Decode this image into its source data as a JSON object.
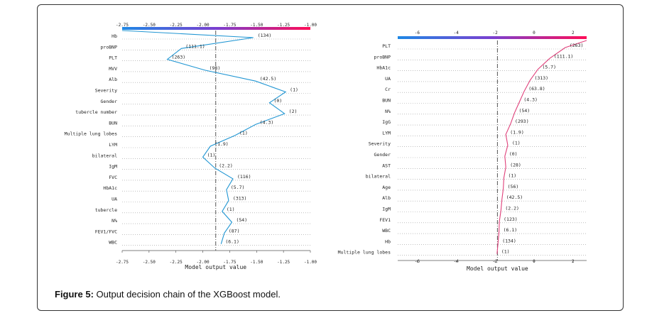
{
  "caption": {
    "label": "Figure 5:",
    "text": " Output decision chain of the XGBoost model."
  },
  "chart_data": [
    {
      "type": "line",
      "xlabel": "Model output value",
      "xlim": [
        -2.75,
        -1.0
      ],
      "xticks": [
        "-2.75",
        "-2.50",
        "-2.25",
        "-2.00",
        "-1.75",
        "-1.50",
        "-1.25",
        "-1.00"
      ],
      "tick_values": [
        -2.75,
        -2.5,
        -2.25,
        -2.0,
        -1.75,
        -1.5,
        -1.25,
        -1.0
      ],
      "base_value": -1.88,
      "features": [
        "Hb",
        "proBNP",
        "PLT",
        "MVV",
        "Alb",
        "Severity",
        "Gender",
        "tubercle number",
        "BUN",
        "Multiple lung lobes",
        "LYM",
        "bilateral",
        "IgM",
        "FVC",
        "HbA1c",
        "UA",
        "tubercle",
        "N%",
        "FEV1/FVC",
        "WBC"
      ],
      "feature_values": [
        "(134)",
        "(111.1)",
        "(263)",
        "(98)",
        "(42.5)",
        "(1)",
        "(0)",
        "(2)",
        "(4.3)",
        "(1)",
        "(1.9)",
        "(1)",
        "(2.2)",
        "(116)",
        "(5.7)",
        "(313)",
        "(1)",
        "(54)",
        "(87)",
        "(6.1)"
      ],
      "path": [
        -2.75,
        -1.53,
        -2.2,
        -2.33,
        -1.98,
        -1.51,
        -1.23,
        -1.38,
        -1.24,
        -1.51,
        -1.7,
        -1.93,
        -2.0,
        -1.89,
        -1.72,
        -1.78,
        -1.76,
        -1.82,
        -1.73,
        -1.8,
        -1.83
      ],
      "grid": "dotted rows",
      "colorbar": {
        "low": "#1e88e5",
        "high": "#ff0d57"
      }
    },
    {
      "type": "line",
      "xlabel": "Model output value",
      "xlim": [
        -7,
        2.7
      ],
      "xticks": [
        "-6",
        "-4",
        "-2",
        "0",
        "2"
      ],
      "tick_values": [
        -6,
        -4,
        -2,
        0,
        2
      ],
      "base_value": -1.88,
      "features": [
        "PLT",
        "proBNP",
        "HbA1c",
        "UA",
        "Cr",
        "BUN",
        "N%",
        "IgG",
        "LYM",
        "Severity",
        "Gender",
        "AST",
        "bilateral",
        "Age",
        "Alb",
        "IgM",
        "FEV1",
        "WBC",
        "Hb",
        "Multiple lung lobes"
      ],
      "feature_values": [
        "(263)",
        "(111.1)",
        "(5.7)",
        "(313)",
        "(63.8)",
        "(4.3)",
        "(54)",
        "(293)",
        "(1.9)",
        "(1)",
        "(0)",
        "(28)",
        "(1)",
        "(56)",
        "(42.5)",
        "(2.2)",
        "(123)",
        "(6.1)",
        "(134)",
        "(1)"
      ],
      "path": [
        2.7,
        1.6,
        0.8,
        0.2,
        -0.2,
        -0.5,
        -0.75,
        -1.0,
        -1.2,
        -1.45,
        -1.35,
        -1.5,
        -1.45,
        -1.55,
        -1.58,
        -1.65,
        -1.7,
        -1.78,
        -1.8,
        -1.85,
        -1.9
      ],
      "grid": "dotted rows",
      "colorbar": {
        "low": "#1e88e5",
        "high": "#ff0d57"
      }
    }
  ]
}
